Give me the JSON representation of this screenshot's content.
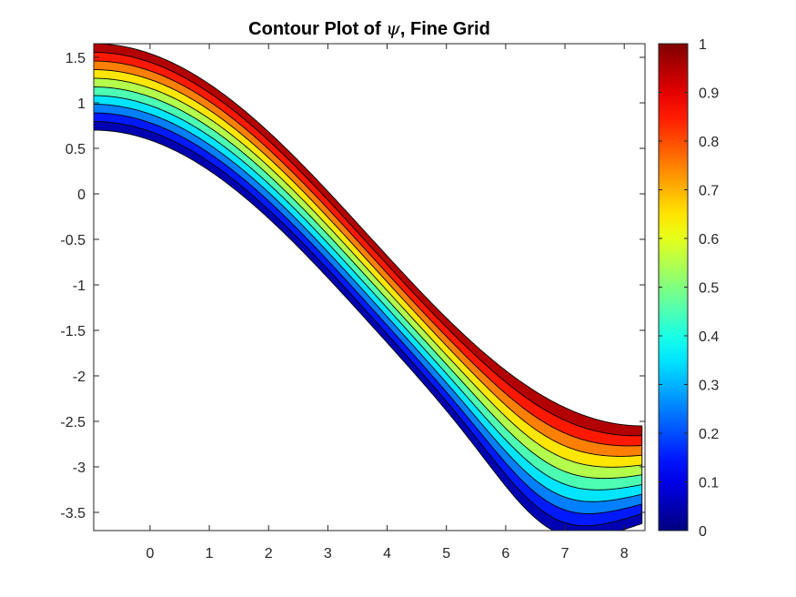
{
  "chart_data": {
    "type": "contour",
    "title_prefix": "Contour Plot of ",
    "title_symbol": "ψ",
    "title_suffix": ", Fine Grid",
    "xlim": [
      -0.95,
      8.35
    ],
    "ylim": [
      -3.7,
      1.65
    ],
    "xticks": [
      0,
      1,
      2,
      3,
      4,
      5,
      6,
      7,
      8
    ],
    "xtick_labels": [
      "0",
      "1",
      "2",
      "3",
      "4",
      "5",
      "6",
      "7",
      "8"
    ],
    "yticks": [
      1.5,
      1,
      0.5,
      0,
      -0.5,
      -1,
      -1.5,
      -2,
      -2.5,
      -3,
      -3.5
    ],
    "ytick_labels": [
      "1.5",
      "1",
      "0.5",
      "0",
      "-0.5",
      "-1",
      "-1.5",
      "-2",
      "-2.5",
      "-3",
      "-3.5"
    ],
    "colorbar": {
      "clim": [
        0,
        1
      ],
      "ticks": [
        0,
        0.1,
        0.2,
        0.3,
        0.4,
        0.5,
        0.6,
        0.7,
        0.8,
        0.9,
        1
      ],
      "tick_labels": [
        "0",
        "0.1",
        "0.2",
        "0.3",
        "0.4",
        "0.5",
        "0.6",
        "0.7",
        "0.8",
        "0.9",
        "1"
      ],
      "colormap": "jet"
    },
    "levels": [
      0,
      0.1,
      0.2,
      0.3,
      0.4,
      0.5,
      0.6,
      0.7,
      0.8,
      0.9,
      1
    ],
    "domain": {
      "x_range": [
        -0.95,
        8.3
      ],
      "top_boundary": {
        "left_y": 1.65,
        "right_y": -2.55
      },
      "bottom_boundary": {
        "left_y": 0.7,
        "right_y": -3.5,
        "min_y": -3.7,
        "min_x": 6.8
      }
    },
    "grid": false
  }
}
